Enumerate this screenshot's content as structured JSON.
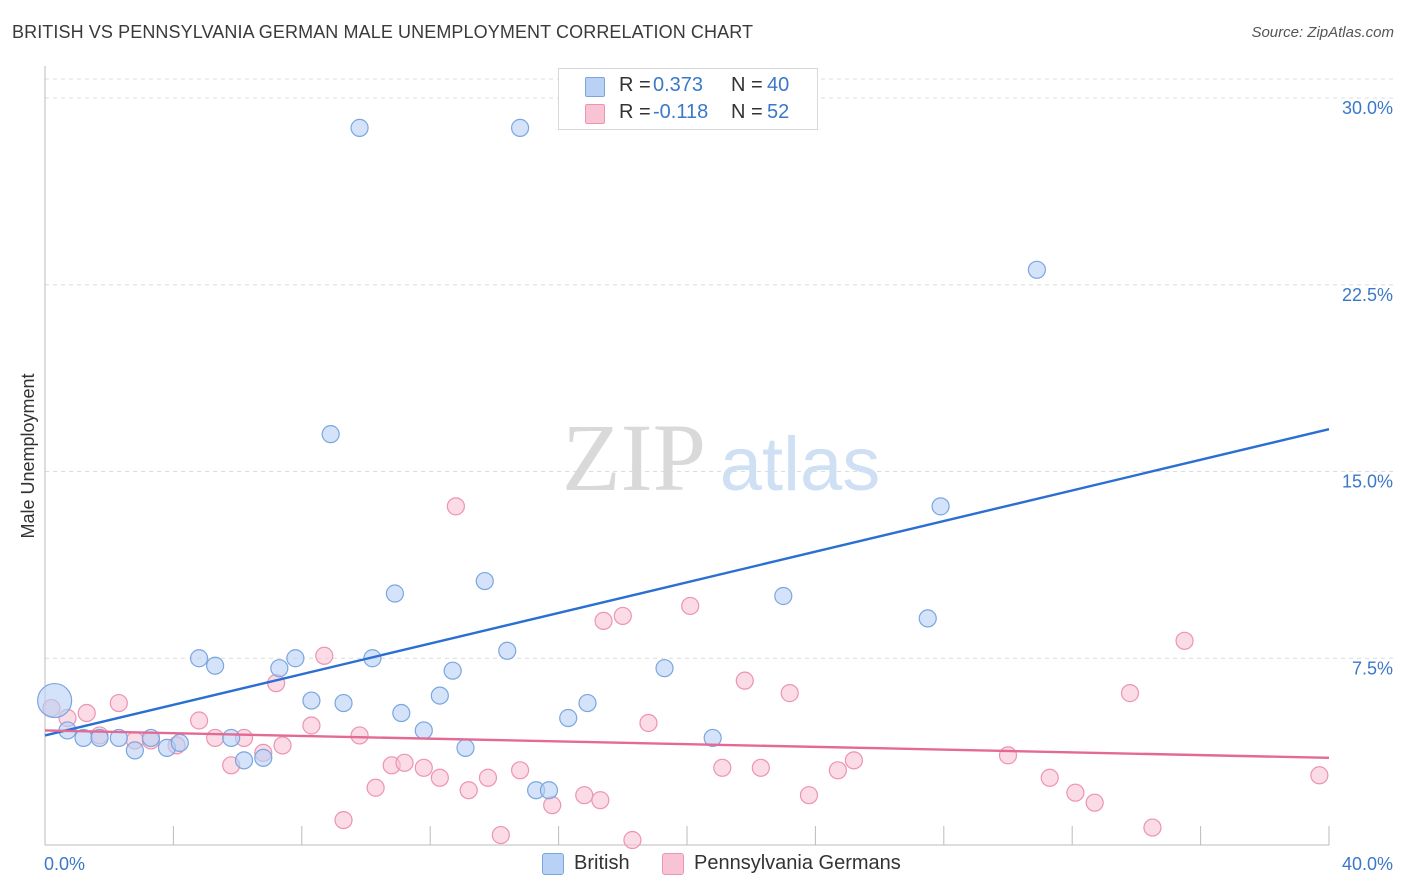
{
  "title": "BRITISH VS PENNSYLVANIA GERMAN MALE UNEMPLOYMENT CORRELATION CHART",
  "source": "Source: ZipAtlas.com",
  "watermark": {
    "zip": "ZIP",
    "atlas": "atlas"
  },
  "legend": {
    "british": {
      "r_label": "R =",
      "r_value": "0.373",
      "n_label": "N =",
      "n_value": "40"
    },
    "penn": {
      "r_label": "R =",
      "r_value": "-0.118",
      "n_label": "N =",
      "n_value": "52"
    }
  },
  "colors": {
    "british_fill": "#b8d1f5",
    "british_stroke": "#7aa6e0",
    "british_line": "#2a6fd1",
    "penn_fill": "#f8c3d3",
    "penn_stroke": "#ec94b1",
    "penn_line": "#e36a95",
    "grid": "#dcdcdc",
    "tick_text": "#3b78c9"
  },
  "chart_data": {
    "type": "scatter",
    "title": "BRITISH VS PENNSYLVANIA GERMAN MALE UNEMPLOYMENT CORRELATION CHART",
    "xlabel": "",
    "ylabel": "Male Unemployment",
    "xlim": [
      0,
      40
    ],
    "ylim": [
      0,
      31
    ],
    "y_ticks": [
      7.5,
      15.0,
      22.5,
      30.0
    ],
    "y_tick_labels": [
      "7.5%",
      "15.0%",
      "22.5%",
      "30.0%"
    ],
    "x_tick_labels": [
      "0.0%",
      "40.0%"
    ],
    "grid": true,
    "legend_position": "top-center",
    "series": [
      {
        "name": "British",
        "trend": {
          "x": [
            0,
            40
          ],
          "y": [
            4.4,
            16.7
          ]
        },
        "points": [
          {
            "x": 0.3,
            "y": 5.8,
            "big": true
          },
          {
            "x": 0.7,
            "y": 4.6
          },
          {
            "x": 1.2,
            "y": 4.3
          },
          {
            "x": 1.7,
            "y": 4.3
          },
          {
            "x": 2.3,
            "y": 4.3
          },
          {
            "x": 2.8,
            "y": 3.8
          },
          {
            "x": 3.3,
            "y": 4.3
          },
          {
            "x": 3.8,
            "y": 3.9
          },
          {
            "x": 4.2,
            "y": 4.1
          },
          {
            "x": 4.8,
            "y": 7.5
          },
          {
            "x": 5.3,
            "y": 7.2
          },
          {
            "x": 5.8,
            "y": 4.3
          },
          {
            "x": 6.2,
            "y": 3.4
          },
          {
            "x": 6.8,
            "y": 3.5
          },
          {
            "x": 7.3,
            "y": 7.1
          },
          {
            "x": 7.8,
            "y": 7.5
          },
          {
            "x": 8.3,
            "y": 5.8
          },
          {
            "x": 8.9,
            "y": 16.5
          },
          {
            "x": 9.3,
            "y": 5.7
          },
          {
            "x": 9.8,
            "y": 28.8
          },
          {
            "x": 10.2,
            "y": 7.5
          },
          {
            "x": 10.9,
            "y": 10.1
          },
          {
            "x": 11.1,
            "y": 5.3
          },
          {
            "x": 11.8,
            "y": 4.6
          },
          {
            "x": 12.3,
            "y": 6.0
          },
          {
            "x": 12.7,
            "y": 7.0
          },
          {
            "x": 13.1,
            "y": 3.9
          },
          {
            "x": 13.7,
            "y": 10.6
          },
          {
            "x": 14.4,
            "y": 7.8
          },
          {
            "x": 14.8,
            "y": 28.8
          },
          {
            "x": 15.3,
            "y": 2.2
          },
          {
            "x": 15.7,
            "y": 2.2
          },
          {
            "x": 16.3,
            "y": 5.1
          },
          {
            "x": 16.9,
            "y": 5.7
          },
          {
            "x": 19.3,
            "y": 7.1
          },
          {
            "x": 20.8,
            "y": 4.3
          },
          {
            "x": 23.0,
            "y": 10.0
          },
          {
            "x": 27.5,
            "y": 9.1
          },
          {
            "x": 27.9,
            "y": 13.6
          },
          {
            "x": 30.9,
            "y": 23.1
          }
        ]
      },
      {
        "name": "Pennsylvania Germans",
        "trend": {
          "x": [
            0,
            40
          ],
          "y": [
            4.6,
            3.5
          ]
        },
        "points": [
          {
            "x": 0.2,
            "y": 5.5
          },
          {
            "x": 0.7,
            "y": 5.1
          },
          {
            "x": 1.3,
            "y": 5.3
          },
          {
            "x": 1.7,
            "y": 4.4
          },
          {
            "x": 2.3,
            "y": 5.7
          },
          {
            "x": 2.8,
            "y": 4.2
          },
          {
            "x": 3.3,
            "y": 4.2
          },
          {
            "x": 4.1,
            "y": 4.0
          },
          {
            "x": 4.8,
            "y": 5.0
          },
          {
            "x": 5.3,
            "y": 4.3
          },
          {
            "x": 5.8,
            "y": 3.2
          },
          {
            "x": 6.2,
            "y": 4.3
          },
          {
            "x": 6.8,
            "y": 3.7
          },
          {
            "x": 7.2,
            "y": 6.5
          },
          {
            "x": 7.4,
            "y": 4.0
          },
          {
            "x": 8.3,
            "y": 4.8
          },
          {
            "x": 8.7,
            "y": 7.6
          },
          {
            "x": 9.3,
            "y": 1.0
          },
          {
            "x": 9.8,
            "y": 4.4
          },
          {
            "x": 10.3,
            "y": 2.3
          },
          {
            "x": 10.8,
            "y": 3.2
          },
          {
            "x": 11.2,
            "y": 3.3
          },
          {
            "x": 11.8,
            "y": 3.1
          },
          {
            "x": 12.3,
            "y": 2.7
          },
          {
            "x": 12.8,
            "y": 13.6
          },
          {
            "x": 13.2,
            "y": 2.2
          },
          {
            "x": 13.8,
            "y": 2.7
          },
          {
            "x": 14.2,
            "y": 0.4
          },
          {
            "x": 14.8,
            "y": 3.0
          },
          {
            "x": 15.8,
            "y": 1.6
          },
          {
            "x": 16.8,
            "y": 2.0
          },
          {
            "x": 17.3,
            "y": 1.8
          },
          {
            "x": 17.4,
            "y": 9.0
          },
          {
            "x": 18.0,
            "y": 9.2
          },
          {
            "x": 18.3,
            "y": 0.2
          },
          {
            "x": 18.8,
            "y": 4.9
          },
          {
            "x": 20.1,
            "y": 9.6
          },
          {
            "x": 21.1,
            "y": 3.1
          },
          {
            "x": 21.8,
            "y": 6.6
          },
          {
            "x": 22.3,
            "y": 3.1
          },
          {
            "x": 23.2,
            "y": 6.1
          },
          {
            "x": 23.8,
            "y": 2.0
          },
          {
            "x": 24.7,
            "y": 3.0
          },
          {
            "x": 25.2,
            "y": 3.4
          },
          {
            "x": 30.0,
            "y": 3.6
          },
          {
            "x": 31.3,
            "y": 2.7
          },
          {
            "x": 32.1,
            "y": 2.1
          },
          {
            "x": 32.7,
            "y": 1.7
          },
          {
            "x": 33.8,
            "y": 6.1
          },
          {
            "x": 34.5,
            "y": 0.7
          },
          {
            "x": 35.5,
            "y": 8.2
          },
          {
            "x": 39.7,
            "y": 2.8
          }
        ]
      }
    ]
  }
}
